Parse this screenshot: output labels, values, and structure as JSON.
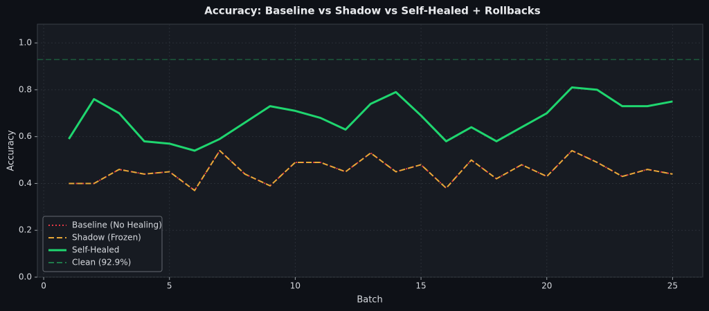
{
  "chart_data": {
    "type": "line",
    "title": "Accuracy: Baseline vs Shadow vs Self-Healed + Rollbacks",
    "x_label": "Batch",
    "y_label": "Accuracy",
    "x": [
      1,
      2,
      3,
      4,
      5,
      6,
      7,
      8,
      9,
      10,
      11,
      12,
      13,
      14,
      15,
      16,
      17,
      18,
      19,
      20,
      21,
      22,
      23,
      24,
      25
    ],
    "series": [
      {
        "name": "Baseline (No Healing)",
        "color": "#e63946",
        "style": "dotted",
        "values": [
          0.4,
          0.4,
          0.46,
          0.44,
          0.45,
          0.37,
          0.54,
          0.44,
          0.39,
          0.49,
          0.49,
          0.45,
          0.53,
          0.45,
          0.48,
          0.38,
          0.5,
          0.42,
          0.48,
          0.43,
          0.54,
          0.49,
          0.43,
          0.46,
          0.44
        ]
      },
      {
        "name": "Shadow (Frozen)",
        "color": "#e8a838",
        "style": "dashed",
        "values": [
          0.4,
          0.4,
          0.46,
          0.44,
          0.45,
          0.37,
          0.54,
          0.44,
          0.39,
          0.49,
          0.49,
          0.45,
          0.53,
          0.45,
          0.48,
          0.38,
          0.5,
          0.42,
          0.48,
          0.43,
          0.54,
          0.49,
          0.43,
          0.46,
          0.44
        ]
      },
      {
        "name": "Self-Healed",
        "color": "#1fd66f",
        "style": "solid",
        "values": [
          0.59,
          0.76,
          0.7,
          0.58,
          0.57,
          0.54,
          0.59,
          0.66,
          0.73,
          0.71,
          0.68,
          0.63,
          0.74,
          0.79,
          0.69,
          0.58,
          0.64,
          0.58,
          0.64,
          0.7,
          0.81,
          0.8,
          0.73,
          0.73,
          0.75
        ]
      }
    ],
    "reference_lines": [
      {
        "name": "Clean (92.9%)",
        "value": 0.929,
        "color": "#1f7a4a",
        "style": "dashed"
      }
    ],
    "xlim": [
      -0.25,
      26.2
    ],
    "ylim": [
      0,
      1.08
    ],
    "xticks": [
      0,
      5,
      10,
      15,
      20,
      25
    ],
    "yticks": [
      {
        "value": 0,
        "label": "0.0"
      },
      {
        "value": 0.2,
        "label": "0.2"
      },
      {
        "value": 0.4,
        "label": "0.4"
      },
      {
        "value": 0.6,
        "label": "0.6"
      },
      {
        "value": 0.8,
        "label": "0.8"
      },
      {
        "value": 1.0,
        "label": "1.0"
      }
    ],
    "grid": true,
    "legend_position": "lower left"
  }
}
